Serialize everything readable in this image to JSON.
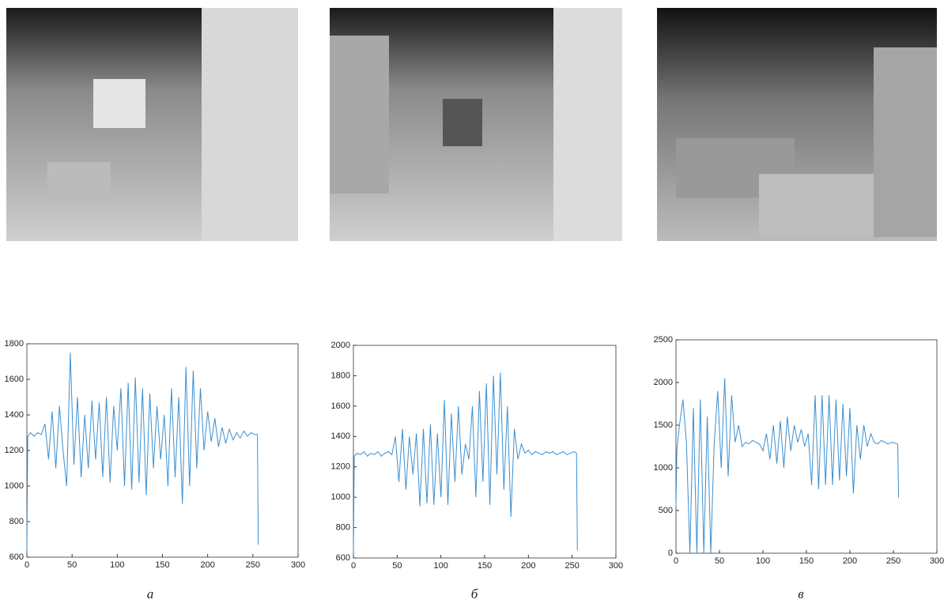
{
  "chart_data": [
    {
      "type": "line",
      "caption": "а",
      "color": "#3b8fd0",
      "xlim": [
        0,
        300
      ],
      "xticks": [
        0,
        50,
        100,
        150,
        200,
        250,
        300
      ],
      "ylim": [
        600,
        1800
      ],
      "yticks": [
        600,
        800,
        1000,
        1200,
        1400,
        1600,
        1800
      ],
      "x": [
        0,
        1,
        4,
        8,
        12,
        16,
        20,
        24,
        28,
        32,
        36,
        40,
        44,
        48,
        52,
        56,
        60,
        64,
        68,
        72,
        76,
        80,
        84,
        88,
        92,
        96,
        100,
        104,
        108,
        112,
        116,
        120,
        124,
        128,
        132,
        136,
        140,
        144,
        148,
        152,
        156,
        160,
        164,
        168,
        172,
        176,
        180,
        184,
        188,
        192,
        196,
        200,
        204,
        208,
        212,
        216,
        220,
        224,
        228,
        232,
        236,
        240,
        244,
        248,
        252,
        255,
        256
      ],
      "values": [
        640,
        1280,
        1300,
        1280,
        1300,
        1290,
        1350,
        1150,
        1420,
        1100,
        1450,
        1200,
        1000,
        1750,
        1120,
        1500,
        1050,
        1400,
        1100,
        1480,
        1150,
        1470,
        1050,
        1500,
        1020,
        1450,
        1200,
        1550,
        1000,
        1580,
        980,
        1610,
        1020,
        1550,
        950,
        1520,
        1100,
        1450,
        1150,
        1400,
        1000,
        1550,
        1050,
        1500,
        900,
        1670,
        1000,
        1650,
        1100,
        1550,
        1200,
        1420,
        1250,
        1380,
        1220,
        1330,
        1240,
        1320,
        1260,
        1300,
        1270,
        1310,
        1280,
        1300,
        1290,
        1290,
        670
      ]
    },
    {
      "type": "line",
      "caption": "б",
      "color": "#3b8fd0",
      "xlim": [
        0,
        300
      ],
      "xticks": [
        0,
        50,
        100,
        150,
        200,
        250,
        300
      ],
      "ylim": [
        600,
        2000
      ],
      "yticks": [
        600,
        800,
        1000,
        1200,
        1400,
        1600,
        1800,
        2000
      ],
      "x": [
        0,
        1,
        4,
        8,
        12,
        16,
        20,
        24,
        28,
        32,
        36,
        40,
        44,
        48,
        52,
        56,
        60,
        64,
        68,
        72,
        76,
        80,
        84,
        88,
        92,
        96,
        100,
        104,
        108,
        112,
        116,
        120,
        124,
        128,
        132,
        136,
        140,
        144,
        148,
        152,
        156,
        160,
        164,
        168,
        172,
        176,
        180,
        184,
        188,
        192,
        196,
        200,
        204,
        208,
        212,
        216,
        220,
        224,
        228,
        232,
        236,
        240,
        244,
        248,
        252,
        255,
        256
      ],
      "values": [
        640,
        1270,
        1290,
        1280,
        1300,
        1270,
        1290,
        1280,
        1300,
        1270,
        1290,
        1300,
        1280,
        1400,
        1100,
        1450,
        1050,
        1400,
        1150,
        1420,
        940,
        1450,
        960,
        1480,
        950,
        1420,
        1000,
        1640,
        950,
        1550,
        1100,
        1600,
        1150,
        1350,
        1250,
        1600,
        1000,
        1700,
        1100,
        1750,
        950,
        1800,
        1150,
        1820,
        1050,
        1600,
        870,
        1450,
        1250,
        1350,
        1290,
        1310,
        1280,
        1300,
        1290,
        1280,
        1300,
        1290,
        1300,
        1280,
        1290,
        1300,
        1280,
        1290,
        1300,
        1290,
        650
      ]
    },
    {
      "type": "line",
      "caption": "в",
      "color": "#3b8fd0",
      "xlim": [
        0,
        300
      ],
      "xticks": [
        0,
        50,
        100,
        150,
        200,
        250,
        300
      ],
      "ylim": [
        0,
        2500
      ],
      "yticks": [
        0,
        500,
        1000,
        1500,
        2000,
        2500
      ],
      "x": [
        0,
        1,
        4,
        8,
        12,
        16,
        20,
        24,
        28,
        32,
        36,
        40,
        44,
        48,
        52,
        56,
        60,
        64,
        68,
        72,
        76,
        80,
        84,
        88,
        92,
        96,
        100,
        104,
        108,
        112,
        116,
        120,
        124,
        128,
        132,
        136,
        140,
        144,
        148,
        152,
        156,
        160,
        164,
        168,
        172,
        176,
        180,
        184,
        188,
        192,
        196,
        200,
        204,
        208,
        212,
        216,
        220,
        224,
        228,
        232,
        236,
        240,
        244,
        248,
        252,
        255,
        256
      ],
      "values": [
        550,
        1200,
        1500,
        1800,
        1300,
        0,
        1700,
        0,
        1800,
        0,
        1600,
        0,
        1300,
        1900,
        1000,
        2050,
        900,
        1850,
        1300,
        1500,
        1250,
        1300,
        1280,
        1320,
        1300,
        1280,
        1200,
        1400,
        1100,
        1500,
        1050,
        1550,
        1000,
        1600,
        1200,
        1500,
        1300,
        1450,
        1250,
        1400,
        800,
        1850,
        750,
        1850,
        800,
        1850,
        800,
        1800,
        850,
        1750,
        900,
        1700,
        700,
        1500,
        1100,
        1500,
        1250,
        1400,
        1300,
        1280,
        1320,
        1300,
        1280,
        1300,
        1290,
        1280,
        650
      ]
    }
  ]
}
